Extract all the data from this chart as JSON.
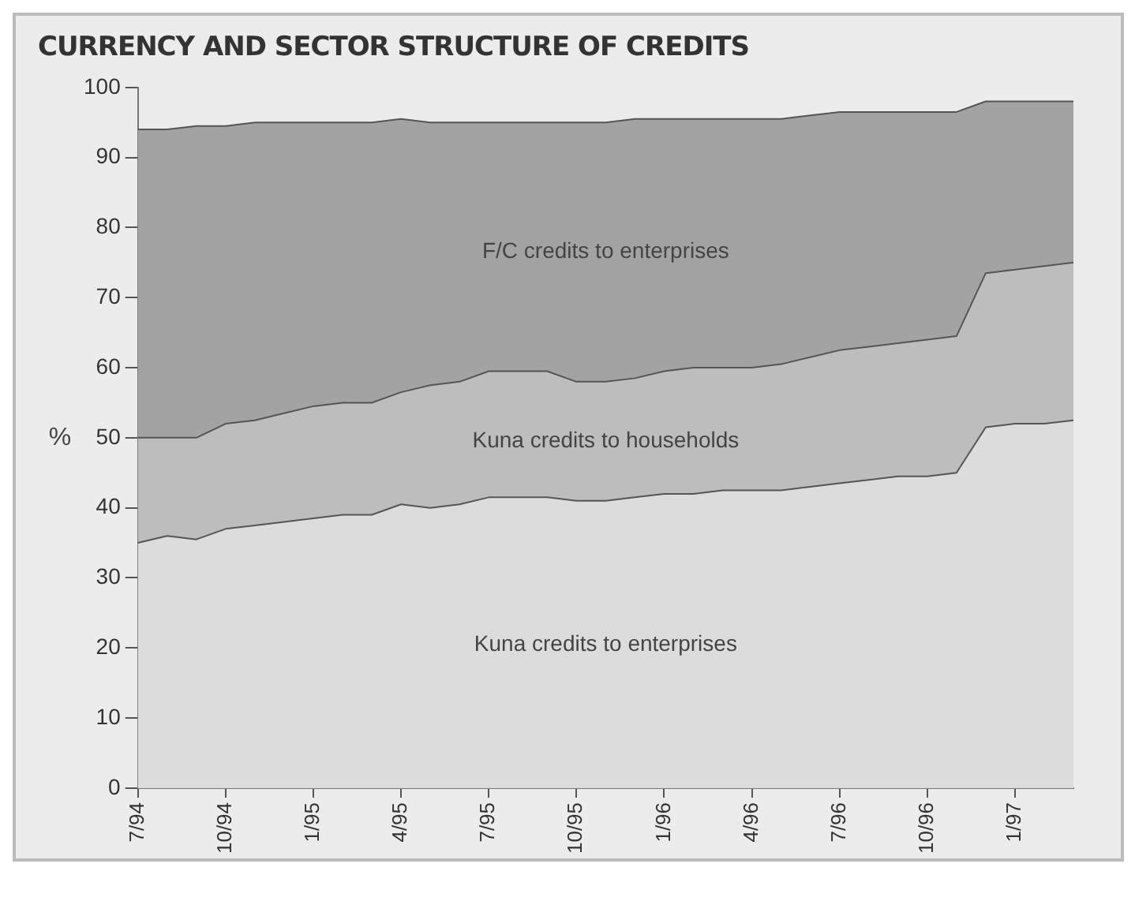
{
  "chart_data": {
    "type": "area",
    "title": "CURRENCY AND SECTOR STRUCTURE OF CREDITS",
    "ylabel": "%",
    "stacked": true,
    "categories": [
      "7/94",
      null,
      null,
      "10/94",
      null,
      null,
      "1/95",
      null,
      null,
      "4/95",
      null,
      null,
      "7/95",
      null,
      null,
      "10/95",
      null,
      null,
      "1/96",
      null,
      null,
      "4/96",
      null,
      null,
      "7/96",
      null,
      null,
      "10/96",
      null,
      null,
      "1/97",
      null,
      null
    ],
    "series": [
      {
        "name": "Kuna credits to enterprises",
        "color": "#dcdcdc",
        "values": [
          35,
          36,
          35.5,
          37,
          37.5,
          38,
          38.5,
          39,
          39,
          40.5,
          40,
          40.5,
          41.5,
          41.5,
          41.5,
          41,
          41,
          41.5,
          42,
          42,
          42.5,
          42.5,
          42.5,
          43,
          43.5,
          44,
          44.5,
          44.5,
          45,
          51.5,
          52,
          52,
          52.5
        ]
      },
      {
        "name": "Kuna credits to households",
        "color": "#bdbdbd",
        "values": [
          15,
          14,
          14.5,
          15,
          15,
          15.5,
          16,
          16,
          16,
          16,
          17.5,
          17.5,
          18,
          18,
          18,
          17,
          17,
          17,
          17.5,
          18,
          17.5,
          17.5,
          18,
          18.5,
          19,
          19,
          19,
          19.5,
          19.5,
          22,
          22,
          22.5,
          22.5
        ]
      },
      {
        "name": "F/C credits to enterprises",
        "color": "#a3a3a3",
        "values": [
          44,
          44,
          44.5,
          42.5,
          42.5,
          41.5,
          40.5,
          40,
          40,
          39,
          37.5,
          37,
          35.5,
          35.5,
          35.5,
          37,
          37,
          37,
          36,
          35.5,
          35.5,
          35.5,
          35,
          34.5,
          34,
          33.5,
          33,
          32.5,
          32,
          24.5,
          24,
          23.5,
          23
        ]
      }
    ],
    "ylim": [
      0,
      100
    ],
    "yticks": [
      0,
      10,
      20,
      30,
      40,
      50,
      60,
      70,
      80,
      90,
      100
    ]
  }
}
